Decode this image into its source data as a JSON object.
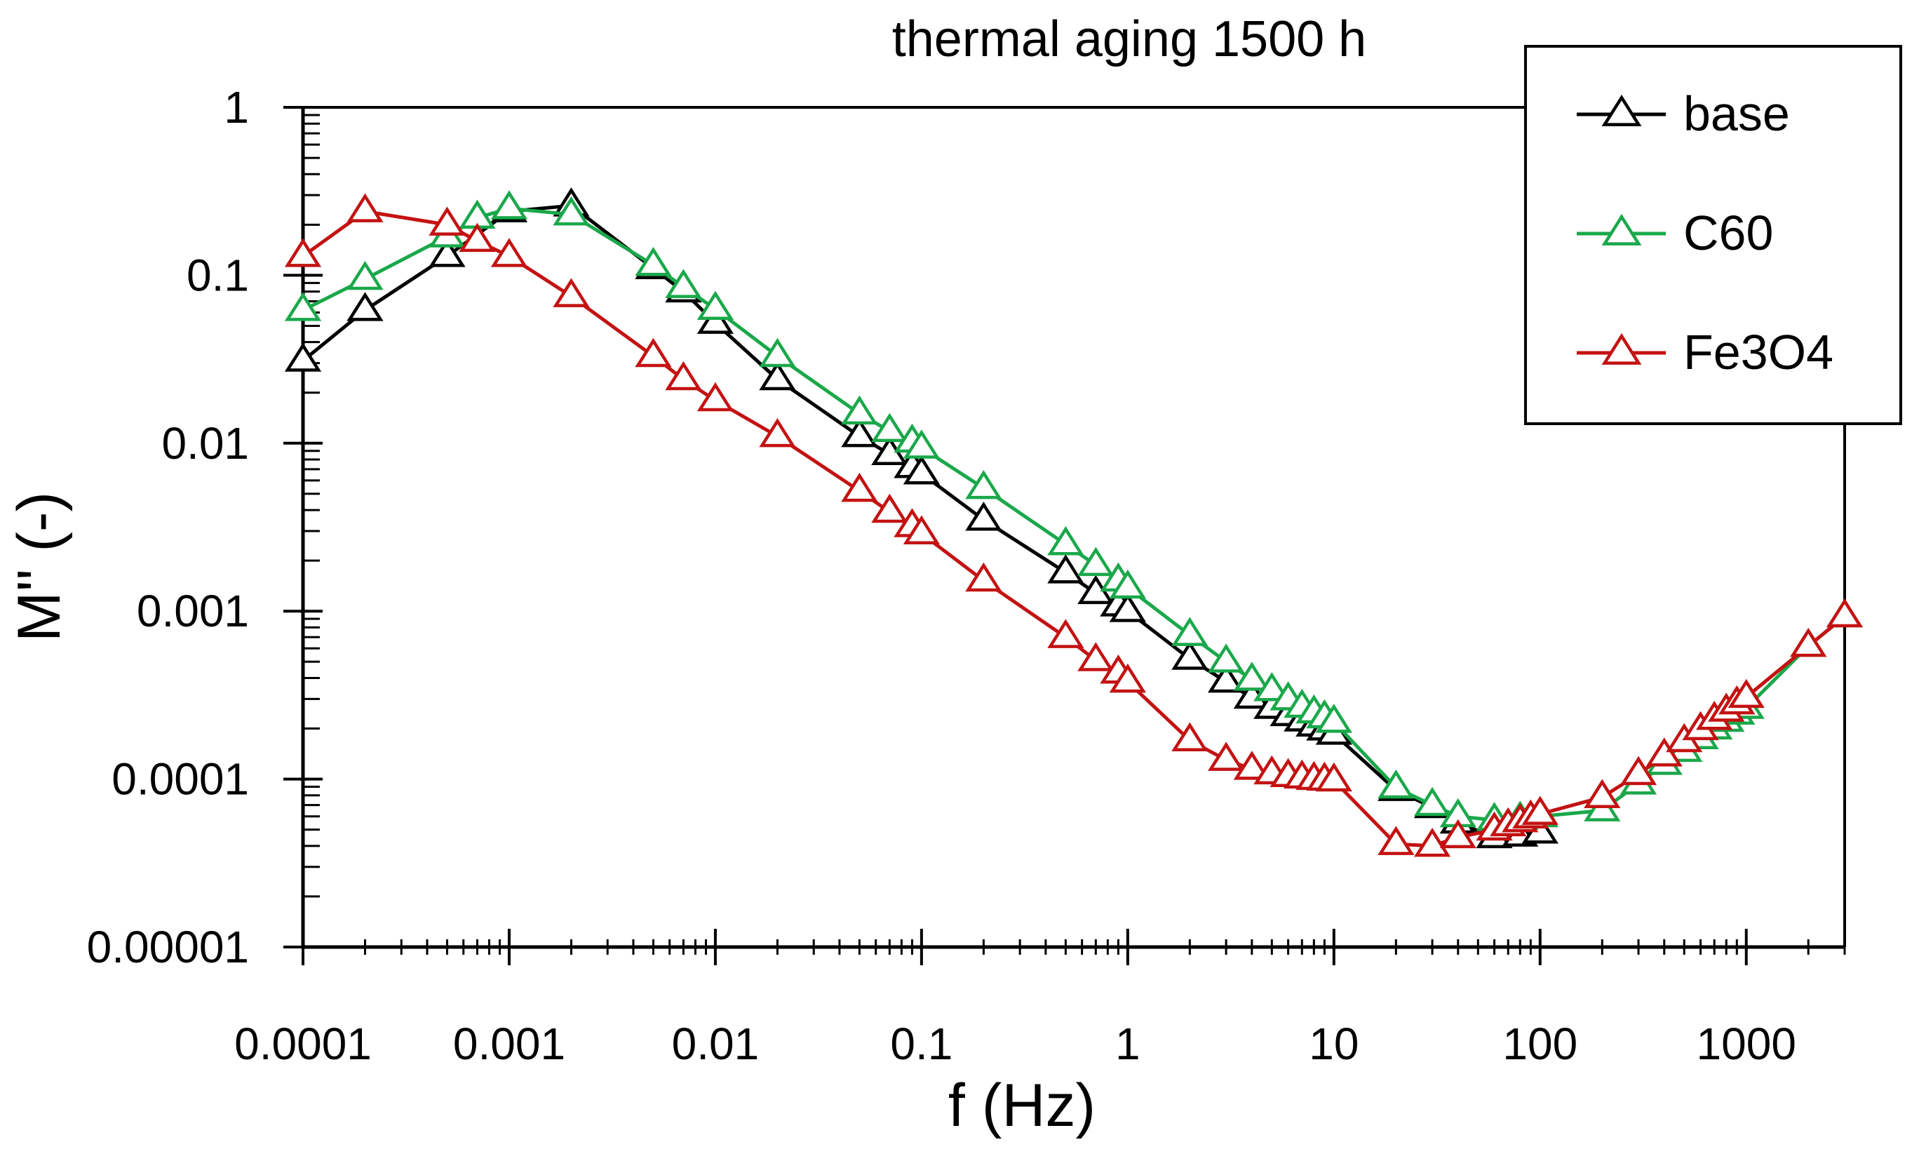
{
  "chart_data": {
    "type": "line",
    "title": "thermal aging 1500 h",
    "xlabel": "f (Hz)",
    "ylabel": "M'' (-)",
    "xscale": "log",
    "yscale": "log",
    "xlim": [
      0.0001,
      3000
    ],
    "ylim": [
      1e-05,
      1
    ],
    "x_ticks": [
      0.0001,
      0.001,
      0.01,
      0.1,
      1,
      10,
      100,
      1000
    ],
    "x_tick_labels": [
      "0.0001",
      "0.001",
      "0.01",
      "0.1",
      "1",
      "10",
      "100",
      "1000"
    ],
    "y_ticks": [
      1e-05,
      0.0001,
      0.001,
      0.01,
      0.1,
      1
    ],
    "y_tick_labels": [
      "0.00001",
      "0.0001",
      "0.001",
      "0.01",
      "0.1",
      "1"
    ],
    "legend_position": "top-right",
    "series": [
      {
        "name": "base",
        "color": "#000000",
        "marker": "triangle-open",
        "x": [
          0.0001,
          0.0002,
          0.0005,
          0.001,
          0.002,
          0.005,
          0.007,
          0.01,
          0.02,
          0.05,
          0.07,
          0.09,
          0.1,
          0.2,
          0.5,
          0.7,
          0.9,
          1,
          2,
          3,
          4,
          5,
          6,
          7,
          8,
          9,
          10,
          20,
          30,
          40,
          60,
          80,
          100
        ],
        "y": [
          0.031,
          0.062,
          0.13,
          0.24,
          0.26,
          0.11,
          0.08,
          0.052,
          0.024,
          0.011,
          0.0086,
          0.0072,
          0.0066,
          0.0035,
          0.0017,
          0.00128,
          0.00108,
          0.001,
          0.00052,
          0.00038,
          0.000305,
          0.000265,
          0.00024,
          0.000223,
          0.000208,
          0.000197,
          0.000186,
          8.6e-05,
          6.8e-05,
          5.5e-05,
          4.5e-05,
          4.6e-05,
          4.8e-05
        ]
      },
      {
        "name": "C60",
        "color": "#1aa84a",
        "marker": "triangle-open",
        "x": [
          0.0001,
          0.0002,
          0.0005,
          0.0007,
          0.001,
          0.002,
          0.005,
          0.007,
          0.01,
          0.02,
          0.05,
          0.07,
          0.09,
          0.1,
          0.2,
          0.5,
          0.7,
          0.9,
          1,
          2,
          3,
          4,
          5,
          6,
          7,
          8,
          9,
          10,
          20,
          30,
          40,
          60,
          80,
          100,
          200,
          300,
          400,
          500,
          600,
          700,
          800,
          900,
          1000,
          2000,
          3000
        ],
        "y": [
          0.062,
          0.095,
          0.17,
          0.22,
          0.25,
          0.23,
          0.115,
          0.085,
          0.063,
          0.033,
          0.015,
          0.0118,
          0.0102,
          0.0094,
          0.0054,
          0.0025,
          0.00188,
          0.00152,
          0.00138,
          0.00072,
          0.0005,
          0.00039,
          0.000338,
          0.000298,
          0.000269,
          0.000249,
          0.000233,
          0.000219,
          8.9e-05,
          7e-05,
          6e-05,
          5.7e-05,
          5.8e-05,
          6e-05,
          6.5e-05,
          9.4e-05,
          0.000123,
          0.000147,
          0.000175,
          0.0002,
          0.000222,
          0.000245,
          0.000265,
          0.00062,
          0.00093
        ]
      },
      {
        "name": "Fe3O4",
        "color": "#c41212",
        "marker": "triangle-open",
        "x": [
          0.0001,
          0.0002,
          0.0005,
          0.0007,
          0.001,
          0.002,
          0.005,
          0.007,
          0.01,
          0.02,
          0.05,
          0.07,
          0.09,
          0.1,
          0.2,
          0.5,
          0.7,
          0.9,
          1,
          2,
          3,
          4,
          5,
          6,
          7,
          8,
          9,
          10,
          20,
          30,
          40,
          60,
          70,
          80,
          90,
          100,
          200,
          300,
          400,
          500,
          600,
          700,
          800,
          900,
          1000,
          2000,
          3000
        ],
        "y": [
          0.13,
          0.24,
          0.2,
          0.16,
          0.13,
          0.075,
          0.033,
          0.024,
          0.018,
          0.011,
          0.0052,
          0.0039,
          0.0032,
          0.0029,
          0.00152,
          0.0007,
          0.00051,
          0.00043,
          0.00038,
          0.00017,
          0.00013,
          0.000115,
          0.000108,
          0.000104,
          0.000102,
          0.0001,
          9.9e-05,
          9.8e-05,
          4.1e-05,
          4e-05,
          4.5e-05,
          5e-05,
          5.3e-05,
          5.6e-05,
          5.9e-05,
          6.2e-05,
          7.8e-05,
          0.000107,
          0.000138,
          0.000168,
          0.000198,
          0.000228,
          0.000255,
          0.000282,
          0.000308,
          0.00062,
          0.00093
        ]
      }
    ]
  }
}
